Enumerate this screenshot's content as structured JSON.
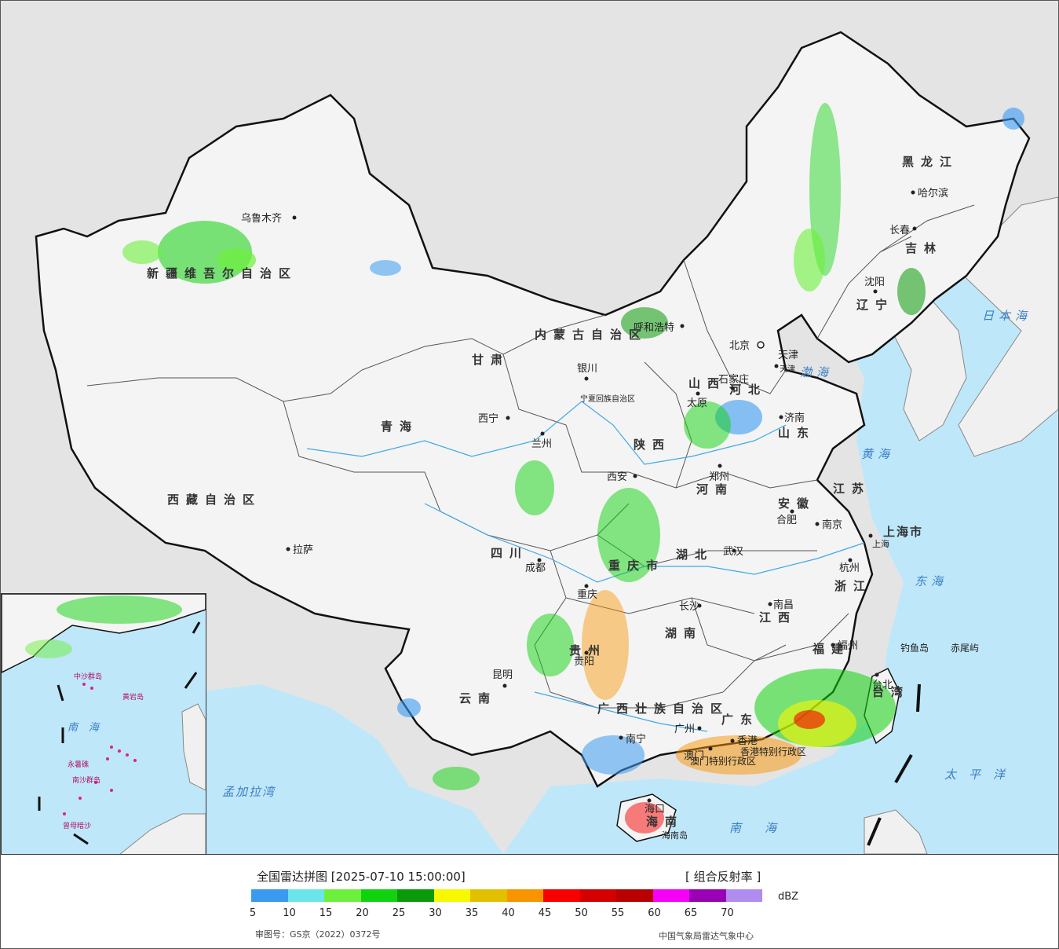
{
  "legend": {
    "title": "全国雷达拼图 [2025-07-10 15:00:00]",
    "product": "[ 组合反射率 ]",
    "unit": "dBZ",
    "scale": [
      {
        "value": "5",
        "color": "#3a9af0"
      },
      {
        "value": "10",
        "color": "#6ae6ea"
      },
      {
        "value": "15",
        "color": "#6df03c"
      },
      {
        "value": "20",
        "color": "#10d20e"
      },
      {
        "value": "25",
        "color": "#0a9a0a"
      },
      {
        "value": "30",
        "color": "#f8f800"
      },
      {
        "value": "35",
        "color": "#e2c000"
      },
      {
        "value": "40",
        "color": "#f89400"
      },
      {
        "value": "45",
        "color": "#f80000"
      },
      {
        "value": "50",
        "color": "#d40000"
      },
      {
        "value": "55",
        "color": "#b80000"
      },
      {
        "value": "60",
        "color": "#f800f8"
      },
      {
        "value": "65",
        "color": "#9a00b4"
      },
      {
        "value": "70",
        "color": "#b08cf0"
      }
    ],
    "review_number": "审图号：GS京（2022）0372号",
    "credit": "中国气象局雷达气象中心"
  },
  "provinces": [
    "新疆维吾尔自治区",
    "西藏自治区",
    "青海",
    "甘肃",
    "内蒙古自治区",
    "黑龙江",
    "吉林",
    "辽宁",
    "河北",
    "山西",
    "陕西",
    "山东",
    "河南",
    "江苏",
    "安徽",
    "湖北",
    "四川",
    "重庆市",
    "贵州",
    "云南",
    "湖南",
    "江西",
    "浙江",
    "福建",
    "广东",
    "广西壮族自治区",
    "海南",
    "台湾",
    "上海市",
    "宁夏回族自治区",
    "天津"
  ],
  "cities": [
    "乌鲁木齐",
    "拉萨",
    "西宁",
    "兰州",
    "银川",
    "呼和浩特",
    "北京",
    "天津",
    "石家庄",
    "太原",
    "济南",
    "西安",
    "郑州",
    "合肥",
    "南京",
    "上海",
    "武汉",
    "成都",
    "重庆",
    "长沙",
    "南昌",
    "杭州",
    "福州",
    "贵阳",
    "昆明",
    "南宁",
    "广州",
    "香港",
    "澳门",
    "海口",
    "台北",
    "哈尔滨",
    "长春",
    "沈阳"
  ],
  "seas": [
    "日本海",
    "渤海",
    "黄海",
    "东海",
    "太平洋",
    "南海",
    "孟加拉湾"
  ],
  "islands": [
    "钓鱼岛",
    "赤尾屿",
    "海南岛"
  ],
  "sar": [
    "香港特别行政区",
    "澳门特别行政区"
  ],
  "inset": {
    "sea": "南海",
    "labels": [
      "中沙群岛",
      "黄岩岛",
      "南沙群岛",
      "永暑礁",
      "曾母暗沙"
    ]
  },
  "colors": {
    "land": "#f4f4f4",
    "ocean": "#bfe7fa",
    "border": "#111111",
    "outside": "#e4e4e4"
  }
}
